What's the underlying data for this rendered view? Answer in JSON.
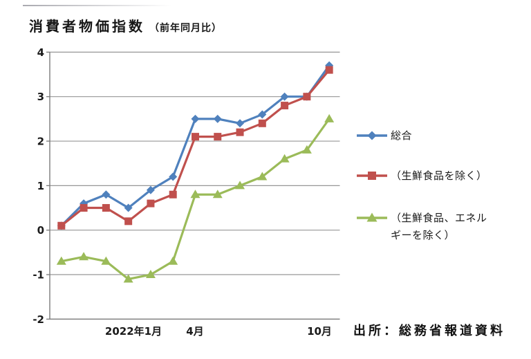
{
  "title": {
    "main": "消費者物価指数",
    "sub": "（前年同月比）"
  },
  "source": "出所：総務省報道資料",
  "colors": {
    "series_blue": "#4F81BD",
    "series_red": "#C0504D",
    "series_green": "#9BBB59",
    "gridline": "#969696",
    "axis": "#7a7a7a",
    "text": "#1a1a1a"
  },
  "chart_data": {
    "type": "line",
    "title": "消費者物価指数（前年同月比）",
    "xlabel": "",
    "ylabel": "",
    "ylim": [
      -2,
      4
    ],
    "yticks": [
      4,
      3,
      2,
      1,
      0,
      -1,
      -2
    ],
    "grid": "horizontal",
    "legend_position": "right",
    "n_points": 13,
    "x_tick_labels": [
      {
        "label": "2022年1月",
        "point_index": 3
      },
      {
        "label": "4月",
        "point_index": 6
      },
      {
        "label": "10月",
        "point_index": 12
      }
    ],
    "series": [
      {
        "name": "総合",
        "marker": "diamond",
        "color_key": "series_blue",
        "values": [
          0.1,
          0.6,
          0.8,
          0.5,
          0.9,
          1.2,
          2.5,
          2.5,
          2.4,
          2.6,
          3.0,
          3.0,
          3.7
        ]
      },
      {
        "name": "（生鮮食品を除く）",
        "marker": "square",
        "color_key": "series_red",
        "values": [
          0.1,
          0.5,
          0.5,
          0.2,
          0.6,
          0.8,
          2.1,
          2.1,
          2.2,
          2.4,
          2.8,
          3.0,
          3.6
        ]
      },
      {
        "name": "（生鮮食品、エネルギーを除く）",
        "marker": "triangle",
        "color_key": "series_green",
        "values": [
          -0.7,
          -0.6,
          -0.7,
          -1.1,
          -1.0,
          -0.7,
          0.8,
          0.8,
          1.0,
          1.2,
          1.6,
          1.8,
          2.5
        ]
      }
    ]
  }
}
